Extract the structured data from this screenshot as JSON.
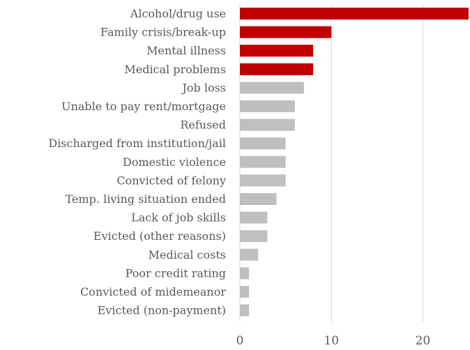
{
  "chart_data": {
    "type": "bar",
    "orientation": "horizontal",
    "title": "",
    "xlabel": "",
    "ylabel": "",
    "categories": [
      "Alcohol/drug use",
      "Family crisis/break-up",
      "Mental illness",
      "Medical problems",
      "Job loss",
      "Unable to pay rent/mortgage",
      "Refused",
      "Discharged from institution/jail",
      "Domestic violence",
      "Convicted of felony",
      "Temp. living situation ended",
      "Lack of job skills",
      "Evicted (other reasons)",
      "Medical costs",
      "Poor credit rating",
      "Convicted of midemeanor",
      "Evicted (non-payment)"
    ],
    "values": [
      25,
      10,
      8,
      8,
      7,
      6,
      6,
      5,
      5,
      5,
      4,
      3,
      3,
      2,
      1,
      1,
      1
    ],
    "highlighted": [
      true,
      true,
      true,
      true,
      false,
      false,
      false,
      false,
      false,
      false,
      false,
      false,
      false,
      false,
      false,
      false,
      false
    ],
    "xlim": [
      0,
      25
    ],
    "xticks": [
      0,
      10,
      20
    ],
    "xtick_labels": [
      "0",
      "10",
      "20"
    ],
    "grid": true,
    "legend": "none",
    "colors": {
      "highlight": "#c00000",
      "default": "#bfbfbf",
      "gridline": "#d9d9d9",
      "text": "#595959"
    }
  }
}
